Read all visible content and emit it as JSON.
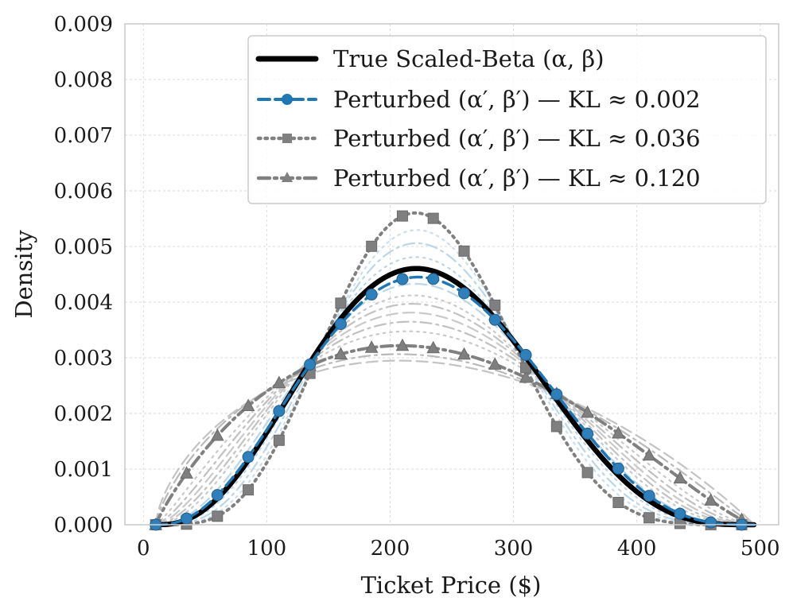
{
  "chart_data": {
    "type": "line",
    "title": "",
    "xlabel": "Ticket Price ($)",
    "ylabel": "Density",
    "xlim": [
      -15,
      515
    ],
    "ylim": [
      0,
      0.009
    ],
    "x_ticks": [
      0,
      100,
      200,
      300,
      400,
      500
    ],
    "y_ticks": [
      0.0,
      0.001,
      0.002,
      0.003,
      0.004,
      0.005,
      0.006,
      0.007,
      0.008,
      0.009
    ],
    "x_tick_labels": [
      "0",
      "100",
      "200",
      "300",
      "400",
      "500"
    ],
    "y_tick_labels": [
      "0.000",
      "0.001",
      "0.002",
      "0.003",
      "0.004",
      "0.005",
      "0.006",
      "0.007",
      "0.008",
      "0.009"
    ],
    "grid": true,
    "legend_position": "top-right",
    "support": [
      10,
      495
    ],
    "series": [
      {
        "name": "True Scaled-Beta (α, β)",
        "alpha": 3.7,
        "beta": 4.5,
        "color": "#000000",
        "style": "solid",
        "marker": "none"
      },
      {
        "name": "Perturbed (α′, β′) — KL ≈ 0.002",
        "alpha": 3.5,
        "beta": 4.2,
        "color": "#1f77b4",
        "style": "dashed",
        "marker": "circle"
      },
      {
        "name": "Perturbed (α′, β′) — KL ≈ 0.036",
        "alpha": 5.3,
        "beta": 6.6,
        "color": "#808080",
        "style": "dotted",
        "marker": "square"
      },
      {
        "name": "Perturbed (α′, β′) — KL ≈ 0.120",
        "alpha": 1.9,
        "beta": 2.3,
        "color": "#808080",
        "style": "dashdot",
        "marker": "triangle"
      }
    ],
    "background_curves": [
      {
        "alpha": 4.0,
        "beta": 4.9,
        "color": "#b8d4e8",
        "style": "dotted"
      },
      {
        "alpha": 4.4,
        "beta": 5.4,
        "color": "#b8d4e8",
        "style": "dashdot"
      },
      {
        "alpha": 4.8,
        "beta": 5.9,
        "color": "#c8dcec",
        "style": "dotted"
      },
      {
        "alpha": 3.3,
        "beta": 4.0,
        "color": "#b8d4e8",
        "style": "dashed"
      },
      {
        "alpha": 3.0,
        "beta": 3.65,
        "color": "#c6c6c6",
        "style": "dotted"
      },
      {
        "alpha": 2.8,
        "beta": 3.4,
        "color": "#c0c0c0",
        "style": "dashdot"
      },
      {
        "alpha": 2.6,
        "beta": 3.15,
        "color": "#c6c6c6",
        "style": "dashed"
      },
      {
        "alpha": 2.4,
        "beta": 2.9,
        "color": "#bdbdbd",
        "style": "dashdot"
      },
      {
        "alpha": 2.2,
        "beta": 2.65,
        "color": "#c6c6c6",
        "style": "dotted"
      },
      {
        "alpha": 1.75,
        "beta": 2.1,
        "color": "#b5b5b5",
        "style": "dashdot"
      },
      {
        "alpha": 1.65,
        "beta": 1.95,
        "color": "#c0c0c0",
        "style": "dashed"
      }
    ]
  }
}
